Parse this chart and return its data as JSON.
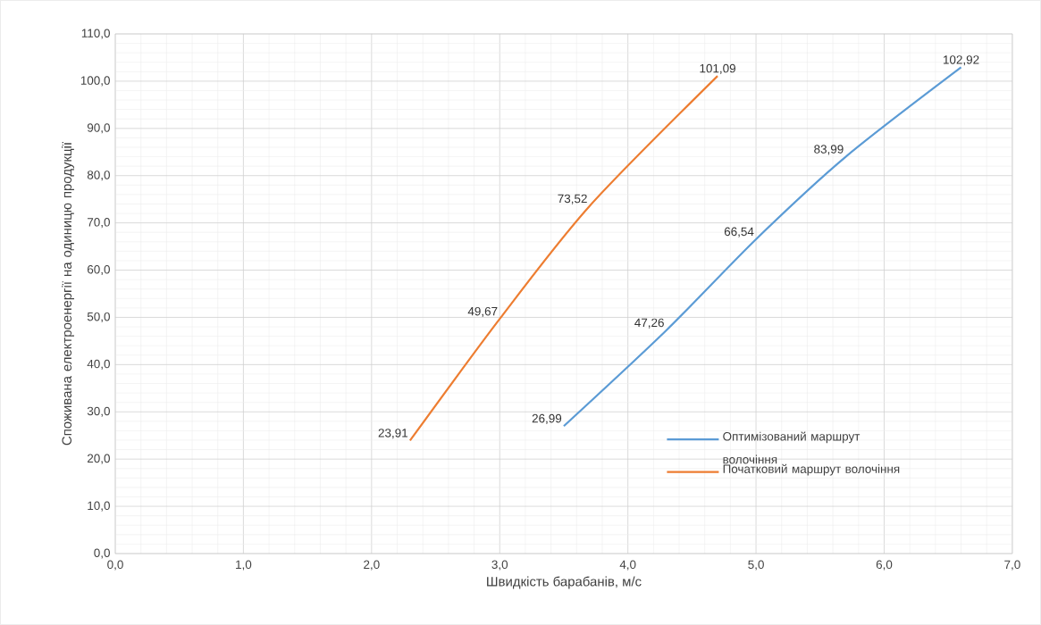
{
  "chart_data": {
    "type": "line",
    "xlabel": "Швидкість барабанів, м/с",
    "ylabel": "Споживана електроенергії на одиницю продукції",
    "series": [
      {
        "name": "Оптимізований маршрут волочіння",
        "color": "#5b9bd5",
        "x": [
          3.5,
          4.3,
          5.0,
          5.7,
          6.6
        ],
        "values": [
          26.99,
          47.26,
          66.54,
          83.99,
          102.92
        ],
        "value_labels": [
          "26,99",
          "47,26",
          "66,54",
          "83,99",
          "102,92"
        ]
      },
      {
        "name": "Початковий маршрут волочіння",
        "color": "#ed7d31",
        "x": [
          2.3,
          3.0,
          3.7,
          4.7
        ],
        "values": [
          23.91,
          49.67,
          73.52,
          101.09
        ],
        "value_labels": [
          "23,91",
          "49,67",
          "73,52",
          "101,09"
        ]
      }
    ],
    "xlim": [
      0,
      7
    ],
    "ylim": [
      0,
      110
    ],
    "xticks": [
      {
        "value": 0,
        "label": "0,0"
      },
      {
        "value": 1,
        "label": "1,0"
      },
      {
        "value": 2,
        "label": "2,0"
      },
      {
        "value": 3,
        "label": "3,0"
      },
      {
        "value": 4,
        "label": "4,0"
      },
      {
        "value": 5,
        "label": "5,0"
      },
      {
        "value": 6,
        "label": "6,0"
      },
      {
        "value": 7,
        "label": "7,0"
      }
    ],
    "yticks": [
      {
        "value": 0,
        "label": "0,0"
      },
      {
        "value": 10,
        "label": "10,0"
      },
      {
        "value": 20,
        "label": "20,0"
      },
      {
        "value": 30,
        "label": "30,0"
      },
      {
        "value": 40,
        "label": "40,0"
      },
      {
        "value": 50,
        "label": "50,0"
      },
      {
        "value": 60,
        "label": "60,0"
      },
      {
        "value": 70,
        "label": "70,0"
      },
      {
        "value": 80,
        "label": "80,0"
      },
      {
        "value": 90,
        "label": "90,0"
      },
      {
        "value": 100,
        "label": "100,0"
      },
      {
        "value": 110,
        "label": "110,0"
      }
    ],
    "grid": true,
    "legend": "bottom right",
    "marker": "none",
    "line_style": "solid"
  }
}
